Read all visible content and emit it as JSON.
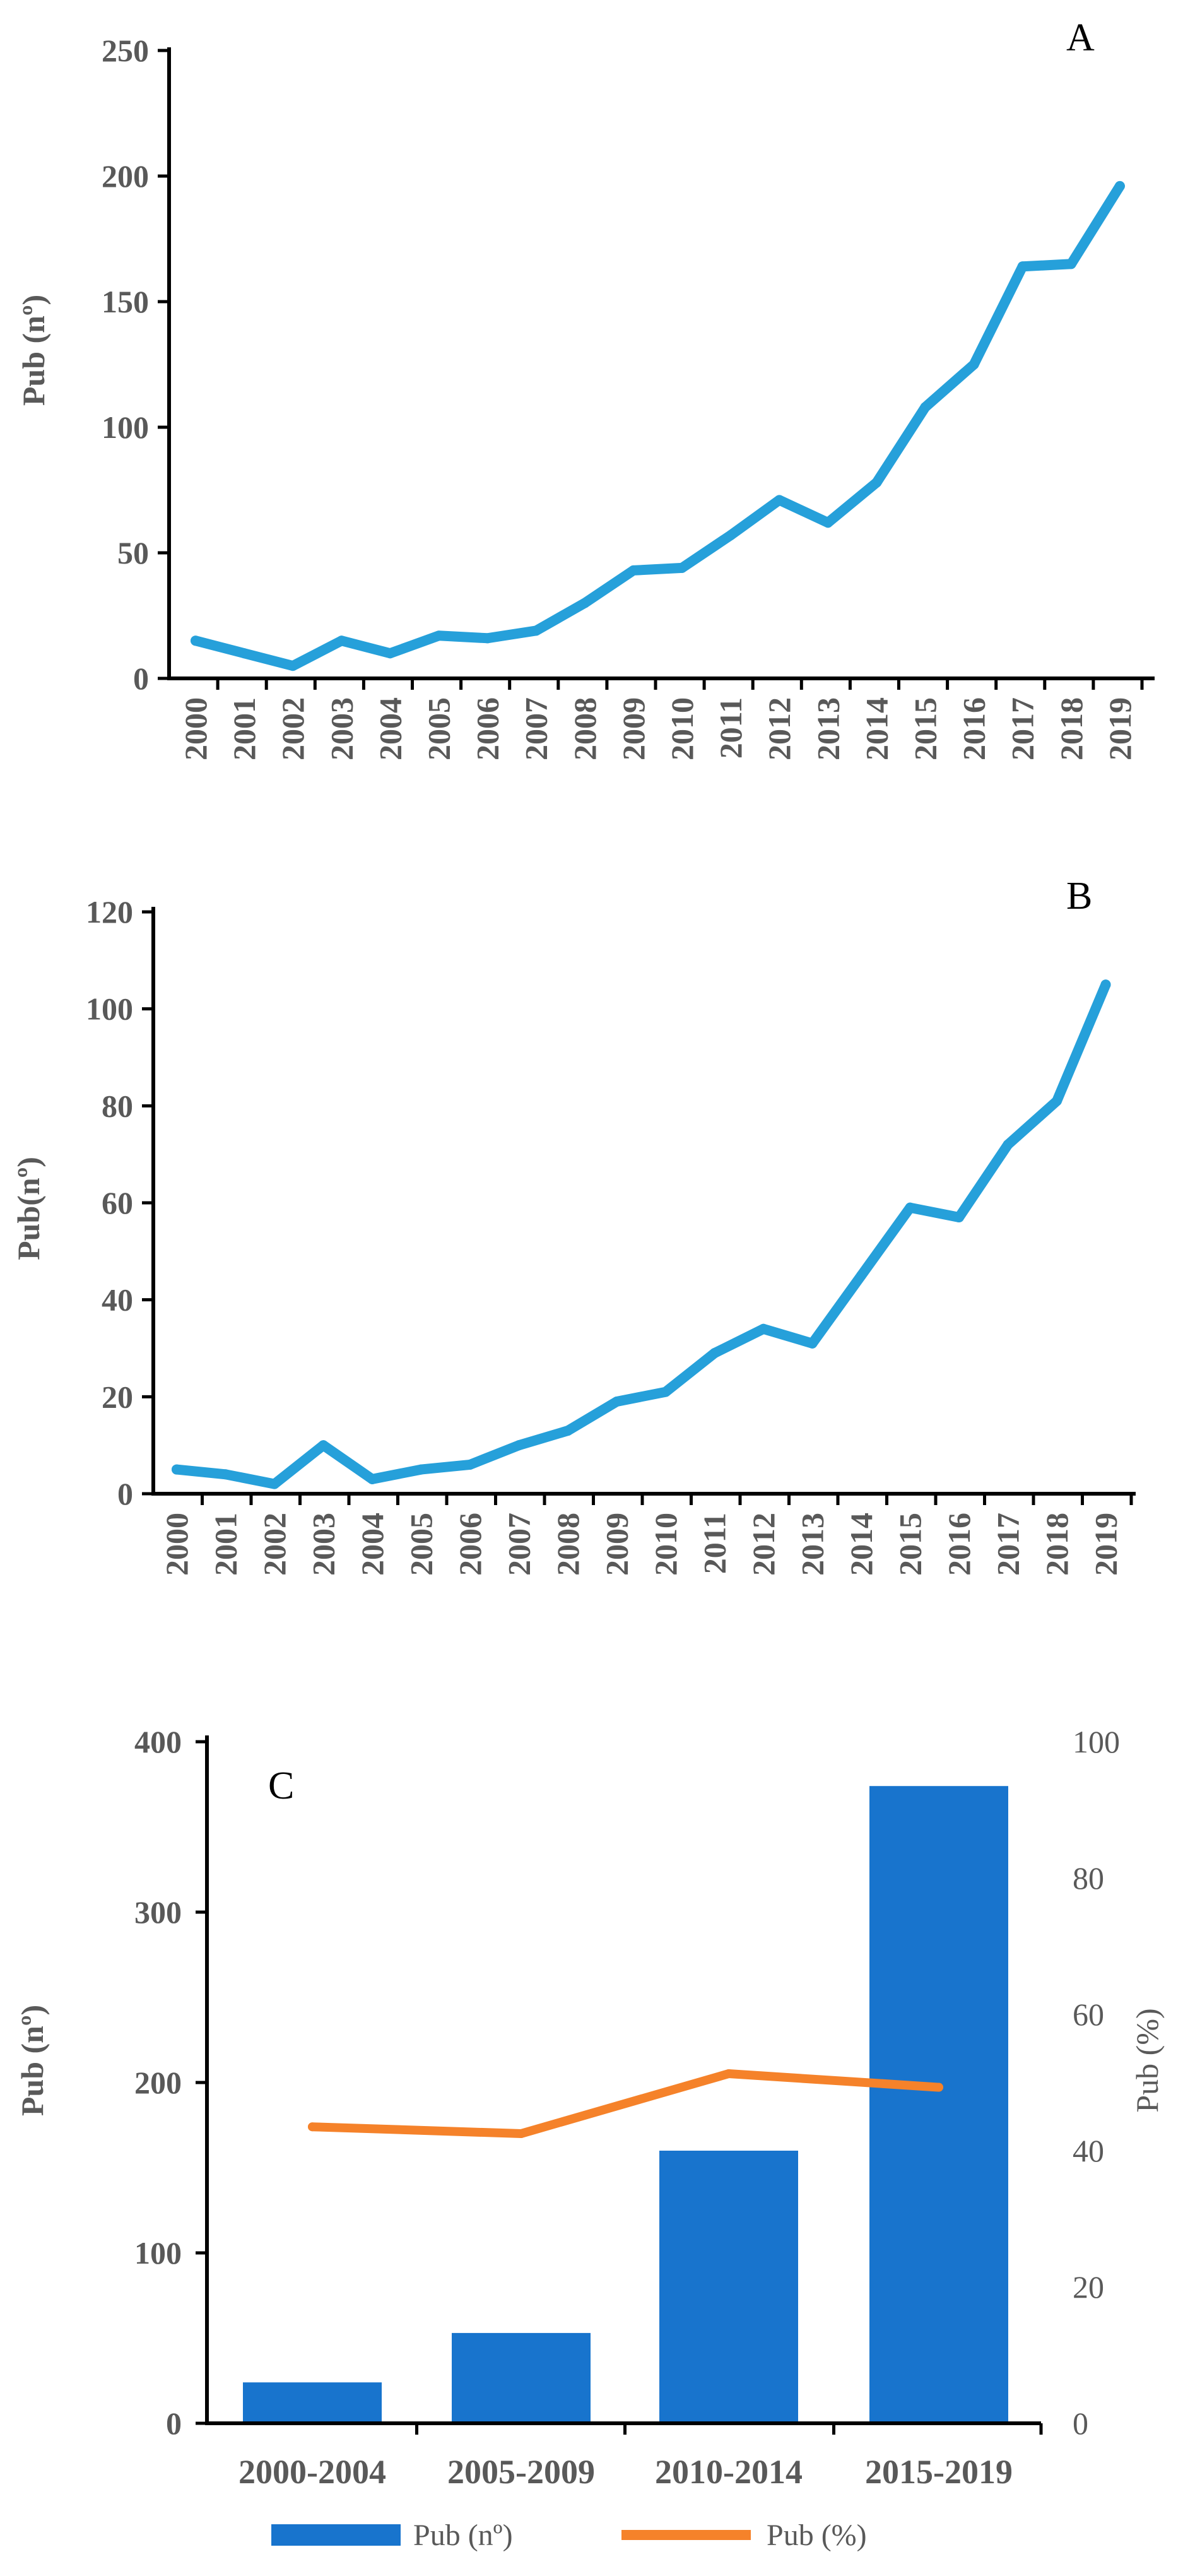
{
  "chart_data": [
    {
      "panel": "A",
      "type": "line",
      "ylabel": "Pub (nº)",
      "xlabel": "",
      "ylim": [
        0,
        250
      ],
      "yticks": [
        0,
        50,
        100,
        150,
        200,
        250
      ],
      "categories": [
        "2000",
        "2001",
        "2002",
        "2003",
        "2004",
        "2005",
        "2006",
        "2007",
        "2008",
        "2009",
        "2010",
        "2011",
        "2012",
        "2013",
        "2014",
        "2015",
        "2016",
        "2017",
        "2018",
        "2019"
      ],
      "series": [
        {
          "name": "Pub (nº)",
          "color": "#26A0DA",
          "values": [
            15,
            10,
            5,
            15,
            10,
            17,
            16,
            19,
            30,
            43,
            44,
            57,
            71,
            62,
            78,
            108,
            125,
            164,
            165,
            196
          ]
        }
      ],
      "grid": false
    },
    {
      "panel": "B",
      "type": "line",
      "ylabel": "Pub(nº)",
      "xlabel": "",
      "ylim": [
        0,
        120
      ],
      "yticks": [
        0,
        20,
        40,
        60,
        80,
        100,
        120
      ],
      "categories": [
        "2000",
        "2001",
        "2002",
        "2003",
        "2004",
        "2005",
        "2006",
        "2007",
        "2008",
        "2009",
        "2010",
        "2011",
        "2012",
        "2013",
        "2014",
        "2015",
        "2016",
        "2017",
        "2018",
        "2019"
      ],
      "series": [
        {
          "name": "Pub(nº)",
          "color": "#26A0DA",
          "values": [
            5,
            4,
            2,
            10,
            3,
            5,
            6,
            10,
            13,
            19,
            21,
            29,
            34,
            31,
            45,
            59,
            57,
            72,
            81,
            105
          ]
        }
      ],
      "grid": false
    },
    {
      "panel": "C",
      "type": "bar",
      "ylabel": "Pub (nº)",
      "y2label": "Pub (%)",
      "ylim": [
        0,
        400
      ],
      "yticks": [
        0,
        100,
        200,
        300,
        400
      ],
      "y2lim": [
        0,
        100
      ],
      "y2ticks": [
        0,
        20,
        40,
        60,
        80,
        100
      ],
      "categories": [
        "2000-2004",
        "2005-2009",
        "2010-2014",
        "2015-2019"
      ],
      "series": [
        {
          "name": "Pub (nº)",
          "kind": "bar",
          "axis": "left",
          "color": "#1874CD",
          "values": [
            24,
            53,
            160,
            374
          ]
        },
        {
          "name": "Pub (%)",
          "kind": "line",
          "axis": "right",
          "color": "#F5822A",
          "values": [
            43.5,
            42.5,
            51.3,
            49.3
          ]
        }
      ],
      "legend": "bottom",
      "grid": false
    }
  ]
}
